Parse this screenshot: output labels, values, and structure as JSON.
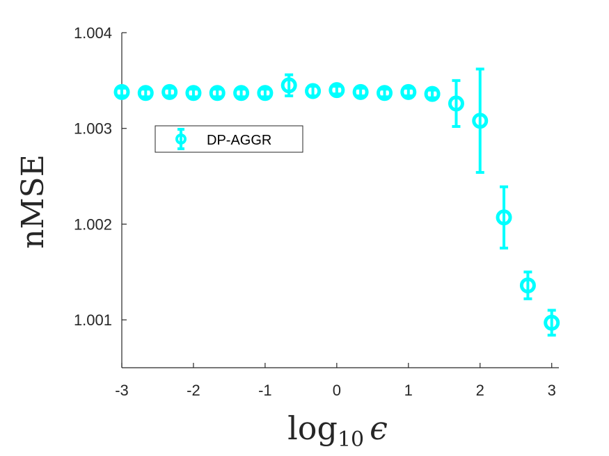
{
  "chart_data": {
    "type": "scatter",
    "title": "",
    "xlabel": "log",
    "xlabel_subscript": "10",
    "xlabel_symbol": "ϵ",
    "ylabel": "nMSE",
    "xlim": [
      -3,
      3.1
    ],
    "ylim": [
      1.0005,
      1.004
    ],
    "xticks": [
      -3,
      -2,
      -1,
      0,
      1,
      2,
      3
    ],
    "xtick_labels": [
      "-3",
      "-2",
      "-1",
      "0",
      "1",
      "2",
      "3"
    ],
    "yticks": [
      1.001,
      1.002,
      1.003,
      1.004
    ],
    "ytick_labels": [
      "1.001",
      "1.002",
      "1.003",
      "1.004"
    ],
    "grid": false,
    "legend_position": "upper-left",
    "series": [
      {
        "name": "DP-AGGR",
        "color": "#00FFFF",
        "marker": "circle",
        "x": [
          -3,
          -2.667,
          -2.333,
          -2,
          -1.667,
          -1.333,
          -1,
          -0.667,
          -0.333,
          0,
          0.333,
          0.667,
          1,
          1.333,
          1.667,
          2,
          2.333,
          2.667,
          3
        ],
        "y": [
          1.00338,
          1.00337,
          1.00338,
          1.00337,
          1.00337,
          1.00337,
          1.00337,
          1.00345,
          1.00339,
          1.0034,
          1.00338,
          1.00337,
          1.00338,
          1.00336,
          1.00326,
          1.00308,
          1.00207,
          1.00136,
          1.00097
        ],
        "error": [
          4e-05,
          4e-05,
          4e-05,
          4e-05,
          4e-05,
          4e-05,
          4e-05,
          0.00011,
          5e-05,
          4e-05,
          4e-05,
          4e-05,
          4e-05,
          4e-05,
          0.00024,
          0.00054,
          0.00032,
          0.00014,
          0.00013
        ]
      }
    ]
  }
}
